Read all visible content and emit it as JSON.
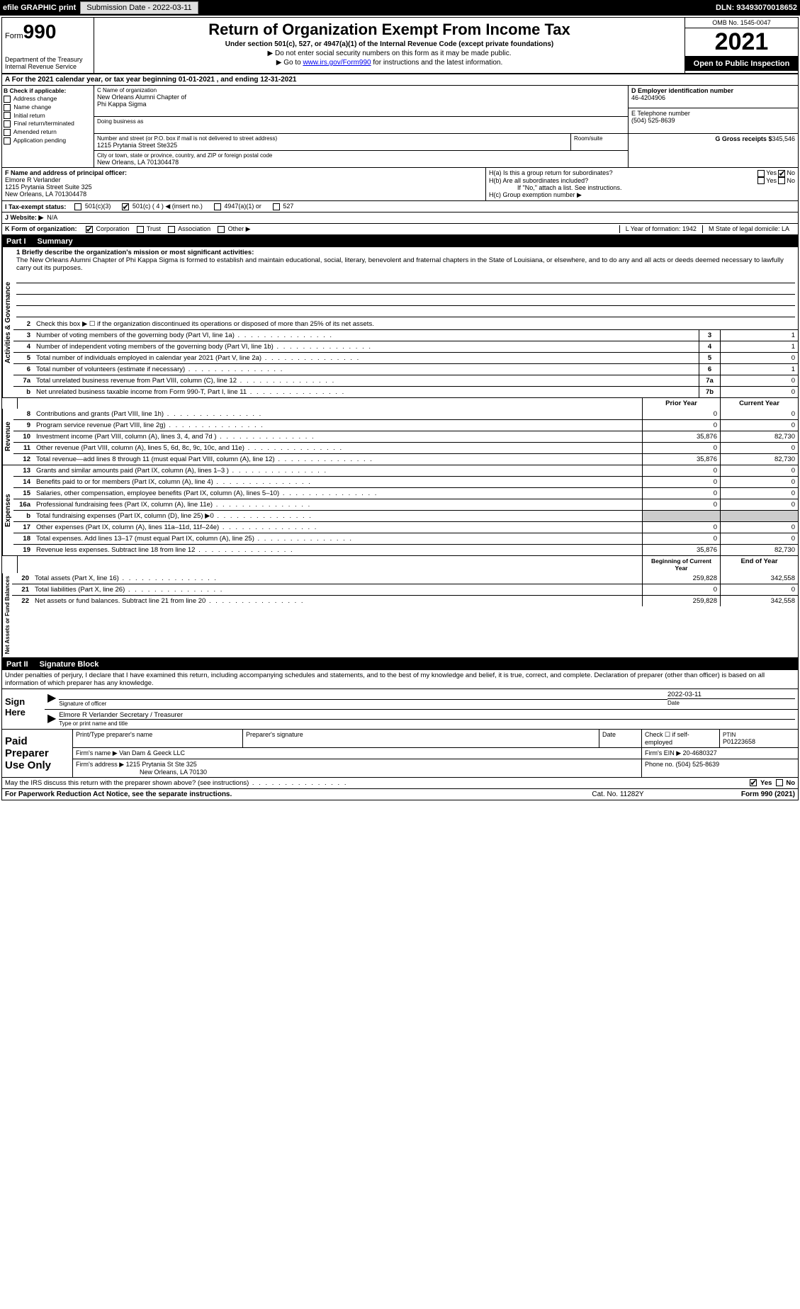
{
  "header": {
    "efile_label": "efile GRAPHIC print",
    "submission_btn": "Submission Date - 2022-03-11",
    "dln": "DLN: 93493070018652"
  },
  "top": {
    "form_label": "Form",
    "form_num": "990",
    "dept": "Department of the Treasury",
    "irs": "Internal Revenue Service",
    "title": "Return of Organization Exempt From Income Tax",
    "subtitle": "Under section 501(c), 527, or 4947(a)(1) of the Internal Revenue Code (except private foundations)",
    "note1": "▶ Do not enter social security numbers on this form as it may be made public.",
    "note2_pre": "▶ Go to ",
    "note2_link": "www.irs.gov/Form990",
    "note2_post": " for instructions and the latest information.",
    "omb": "OMB No. 1545-0047",
    "year": "2021",
    "open": "Open to Public Inspection"
  },
  "periodA": "A For the 2021 calendar year, or tax year beginning 01-01-2021     , and ending 12-31-2021",
  "boxB": {
    "title": "B Check if applicable:",
    "items": [
      "Address change",
      "Name change",
      "Initial return",
      "Final return/terminated",
      "Amended return",
      "Application pending"
    ]
  },
  "boxC": {
    "label": "C Name of organization",
    "name1": "New Orleans Alumni Chapter of",
    "name2": "Phi Kappa Sigma",
    "dba_label": "Doing business as",
    "street_label": "Number and street (or P.O. box if mail is not delivered to street address)",
    "room_label": "Room/suite",
    "street": "1215 Prytania Street Ste325",
    "city_label": "City or town, state or province, country, and ZIP or foreign postal code",
    "city": "New Orleans, LA  701304478"
  },
  "boxD": {
    "label": "D Employer identification number",
    "value": "46-4204906"
  },
  "boxE": {
    "label": "E Telephone number",
    "value": "(504) 525-8639"
  },
  "boxG": {
    "label": "G Gross receipts $",
    "value": "345,546"
  },
  "boxF": {
    "label": "F Name and address of principal officer:",
    "name": "Elmore R Verlander",
    "addr1": "1215 Prytania Street Suite 325",
    "addr2": "New Orleans, LA  701304478"
  },
  "boxH": {
    "ha": "H(a)  Is this a group return for subordinates?",
    "hb": "H(b)  Are all subordinates included?",
    "hb_note": "If \"No,\" attach a list. See instructions.",
    "hc": "H(c)  Group exemption number ▶"
  },
  "taxStatus": {
    "label": "I  Tax-exempt status:",
    "opts": [
      "501(c)(3)",
      "501(c) ( 4 ) ◀ (insert no.)",
      "4947(a)(1) or",
      "527"
    ],
    "checked_idx": 1
  },
  "website": {
    "label": "J  Website: ▶",
    "value": "N/A"
  },
  "rowK": {
    "label": "K Form of organization:",
    "opts": [
      "Corporation",
      "Trust",
      "Association",
      "Other ▶"
    ],
    "checked_idx": 0,
    "L": "L Year of formation: 1942",
    "M": "M State of legal domicile: LA"
  },
  "part1": {
    "header_num": "Part I",
    "header_title": "Summary",
    "side_gov": "Activities & Governance",
    "line1_label": "1 Briefly describe the organization's mission or most significant activities:",
    "line1_text": "The New Orleans Alumni Chapter of Phi Kappa Sigma is formed to establish and maintain educational, social, literary, benevolent and fraternal chapters in the State of Louisiana, or elsewhere, and to do any and all acts or deeds deemed necessary to lawfully carry out its purposes.",
    "line2": "Check this box ▶ ☐  if the organization discontinued its operations or disposed of more than 25% of its net assets.",
    "gov_lines": [
      {
        "n": "3",
        "d": "Number of voting members of the governing body (Part VI, line 1a)",
        "box": "3",
        "v": "1"
      },
      {
        "n": "4",
        "d": "Number of independent voting members of the governing body (Part VI, line 1b)",
        "box": "4",
        "v": "1"
      },
      {
        "n": "5",
        "d": "Total number of individuals employed in calendar year 2021 (Part V, line 2a)",
        "box": "5",
        "v": "0"
      },
      {
        "n": "6",
        "d": "Total number of volunteers (estimate if necessary)",
        "box": "6",
        "v": "1"
      },
      {
        "n": "7a",
        "d": "Total unrelated business revenue from Part VIII, column (C), line 12",
        "box": "7a",
        "v": "0"
      },
      {
        "n": "b",
        "d": "Net unrelated business taxable income from Form 990-T, Part I, line 11",
        "box": "7b",
        "v": "0"
      }
    ],
    "side_rev": "Revenue",
    "col_prior": "Prior Year",
    "col_current": "Current Year",
    "rev_lines": [
      {
        "n": "8",
        "d": "Contributions and grants (Part VIII, line 1h)",
        "p": "0",
        "c": "0"
      },
      {
        "n": "9",
        "d": "Program service revenue (Part VIII, line 2g)",
        "p": "0",
        "c": "0"
      },
      {
        "n": "10",
        "d": "Investment income (Part VIII, column (A), lines 3, 4, and 7d )",
        "p": "35,876",
        "c": "82,730"
      },
      {
        "n": "11",
        "d": "Other revenue (Part VIII, column (A), lines 5, 6d, 8c, 9c, 10c, and 11e)",
        "p": "0",
        "c": "0"
      },
      {
        "n": "12",
        "d": "Total revenue—add lines 8 through 11 (must equal Part VIII, column (A), line 12)",
        "p": "35,876",
        "c": "82,730"
      }
    ],
    "side_exp": "Expenses",
    "exp_lines": [
      {
        "n": "13",
        "d": "Grants and similar amounts paid (Part IX, column (A), lines 1–3 )",
        "p": "0",
        "c": "0"
      },
      {
        "n": "14",
        "d": "Benefits paid to or for members (Part IX, column (A), line 4)",
        "p": "0",
        "c": "0"
      },
      {
        "n": "15",
        "d": "Salaries, other compensation, employee benefits (Part IX, column (A), lines 5–10)",
        "p": "0",
        "c": "0"
      },
      {
        "n": "16a",
        "d": "Professional fundraising fees (Part IX, column (A), line 11e)",
        "p": "0",
        "c": "0"
      },
      {
        "n": "b",
        "d": "Total fundraising expenses (Part IX, column (D), line 25) ▶0",
        "p": "",
        "c": "",
        "gray": true
      },
      {
        "n": "17",
        "d": "Other expenses (Part IX, column (A), lines 11a–11d, 11f–24e)",
        "p": "0",
        "c": "0"
      },
      {
        "n": "18",
        "d": "Total expenses. Add lines 13–17 (must equal Part IX, column (A), line 25)",
        "p": "0",
        "c": "0"
      },
      {
        "n": "19",
        "d": "Revenue less expenses. Subtract line 18 from line 12",
        "p": "35,876",
        "c": "82,730"
      }
    ],
    "side_net": "Net Assets or Fund Balances",
    "col_begin": "Beginning of Current Year",
    "col_end": "End of Year",
    "net_lines": [
      {
        "n": "20",
        "d": "Total assets (Part X, line 16)",
        "p": "259,828",
        "c": "342,558"
      },
      {
        "n": "21",
        "d": "Total liabilities (Part X, line 26)",
        "p": "0",
        "c": "0"
      },
      {
        "n": "22",
        "d": "Net assets or fund balances. Subtract line 21 from line 20",
        "p": "259,828",
        "c": "342,558"
      }
    ]
  },
  "part2": {
    "header_num": "Part II",
    "header_title": "Signature Block",
    "decl": "Under penalties of perjury, I declare that I have examined this return, including accompanying schedules and statements, and to the best of my knowledge and belief, it is true, correct, and complete. Declaration of preparer (other than officer) is based on all information of which preparer has any knowledge."
  },
  "sign": {
    "label": "Sign Here",
    "sig_officer": "Signature of officer",
    "date": "Date",
    "date_val": "2022-03-11",
    "name": "Elmore R Verlander  Secretary / Treasurer",
    "name_label": "Type or print name and title"
  },
  "preparer": {
    "label": "Paid Preparer Use Only",
    "h1": "Print/Type preparer's name",
    "h2": "Preparer's signature",
    "h3": "Date",
    "h4_check": "Check ☐ if self-employed",
    "h5": "PTIN",
    "ptin": "P01223658",
    "firm_name_label": "Firm's name    ▶",
    "firm_name": "Van Dam & Geeck LLC",
    "firm_ein_label": "Firm's EIN ▶",
    "firm_ein": "20-4680327",
    "firm_addr_label": "Firm's address ▶",
    "firm_addr1": "1215 Prytania St Ste 325",
    "firm_addr2": "New Orleans, LA  70130",
    "phone_label": "Phone no.",
    "phone": "(504) 525-8639"
  },
  "footer": {
    "discuss": "May the IRS discuss this return with the preparer shown above? (see instructions)",
    "yes": "Yes",
    "no": "No",
    "paperwork": "For Paperwork Reduction Act Notice, see the separate instructions.",
    "cat": "Cat. No. 11282Y",
    "form": "Form 990 (2021)"
  }
}
